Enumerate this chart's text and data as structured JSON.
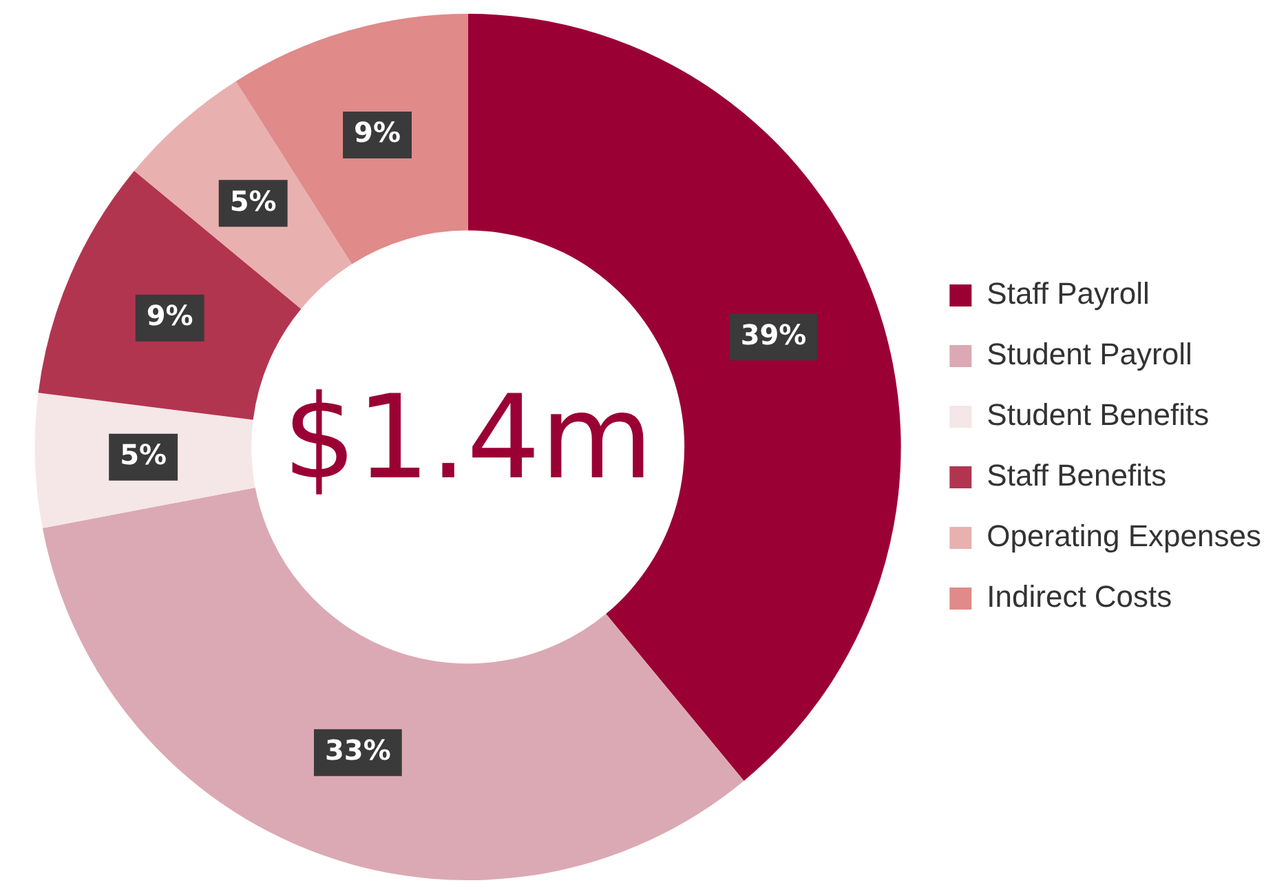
{
  "chart_data": {
    "type": "donut",
    "categories": [
      "Staff Payroll",
      "Student Payroll",
      "Student Benefits",
      "Staff Benefits",
      "Operating Expenses",
      "Indirect Costs"
    ],
    "values": [
      39,
      33,
      5,
      9,
      5,
      9
    ],
    "value_labels": [
      "39%",
      "33%",
      "5%",
      "9%",
      "5%",
      "9%"
    ],
    "colors": [
      "#9b0034",
      "#dba9b3",
      "#f5e6e8",
      "#b2354f",
      "#e9b0b0",
      "#e08a8a"
    ],
    "annotations": [
      "$1.4m"
    ],
    "legend": "right"
  }
}
